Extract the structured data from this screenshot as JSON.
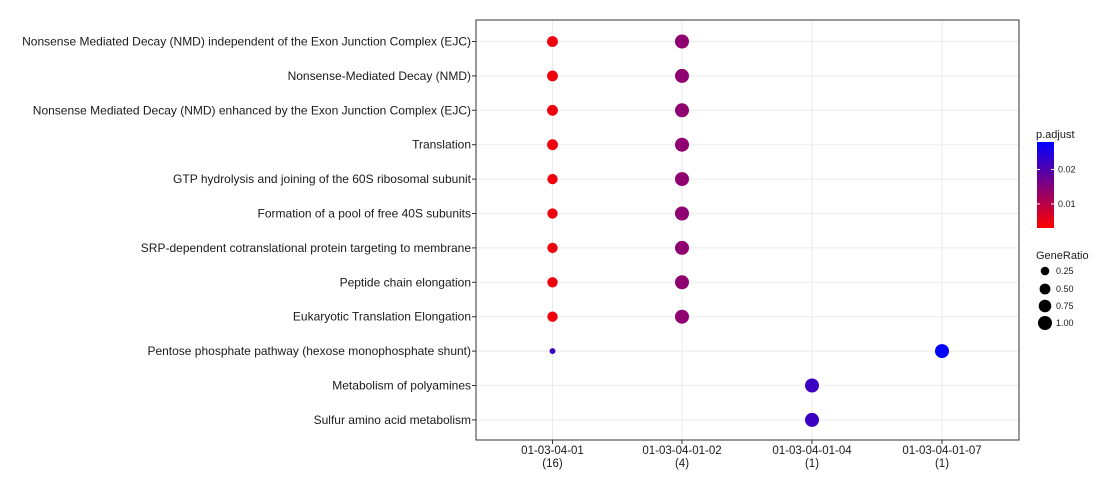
{
  "chart_data": {
    "type": "scatter",
    "title": "",
    "xlabel": "",
    "ylabel": "",
    "grid": true,
    "legend_position": "right",
    "x_categories": [
      {
        "line1": "01-03-04-01",
        "line2": "(16)"
      },
      {
        "line1": "01-03-04-01-02",
        "line2": "(4)"
      },
      {
        "line1": "01-03-04-01-04",
        "line2": "(1)"
      },
      {
        "line1": "01-03-04-01-07",
        "line2": "(1)"
      }
    ],
    "y_categories": [
      "Nonsense Mediated Decay (NMD) independent of the Exon Junction Complex (EJC)",
      "Nonsense-Mediated Decay (NMD)",
      "Nonsense Mediated Decay (NMD) enhanced by the Exon Junction Complex (EJC)",
      "Translation",
      "GTP hydrolysis and joining of the 60S ribosomal subunit",
      "Formation of a pool of free 40S subunits",
      "SRP-dependent cotranslational protein targeting to membrane",
      "Peptide chain elongation",
      "Eukaryotic Translation Elongation",
      "Pentose phosphate pathway (hexose monophosphate shunt)",
      "Metabolism of polyamines",
      "Sulfur amino acid metabolism"
    ],
    "points": [
      {
        "x": 0,
        "y": 0,
        "gene_ratio": 0.5,
        "p_adjust": 0.0045
      },
      {
        "x": 1,
        "y": 0,
        "gene_ratio": 1.0,
        "p_adjust": 0.014
      },
      {
        "x": 0,
        "y": 1,
        "gene_ratio": 0.5,
        "p_adjust": 0.0045
      },
      {
        "x": 1,
        "y": 1,
        "gene_ratio": 1.0,
        "p_adjust": 0.014
      },
      {
        "x": 0,
        "y": 2,
        "gene_ratio": 0.5,
        "p_adjust": 0.0045
      },
      {
        "x": 1,
        "y": 2,
        "gene_ratio": 1.0,
        "p_adjust": 0.014
      },
      {
        "x": 0,
        "y": 3,
        "gene_ratio": 0.5,
        "p_adjust": 0.0045
      },
      {
        "x": 1,
        "y": 3,
        "gene_ratio": 1.0,
        "p_adjust": 0.014
      },
      {
        "x": 0,
        "y": 4,
        "gene_ratio": 0.4375,
        "p_adjust": 0.0045
      },
      {
        "x": 1,
        "y": 4,
        "gene_ratio": 1.0,
        "p_adjust": 0.014
      },
      {
        "x": 0,
        "y": 5,
        "gene_ratio": 0.4375,
        "p_adjust": 0.0045
      },
      {
        "x": 1,
        "y": 5,
        "gene_ratio": 1.0,
        "p_adjust": 0.014
      },
      {
        "x": 0,
        "y": 6,
        "gene_ratio": 0.4375,
        "p_adjust": 0.0045
      },
      {
        "x": 1,
        "y": 6,
        "gene_ratio": 1.0,
        "p_adjust": 0.014
      },
      {
        "x": 0,
        "y": 7,
        "gene_ratio": 0.4375,
        "p_adjust": 0.0045
      },
      {
        "x": 1,
        "y": 7,
        "gene_ratio": 1.0,
        "p_adjust": 0.014
      },
      {
        "x": 0,
        "y": 8,
        "gene_ratio": 0.4375,
        "p_adjust": 0.0045
      },
      {
        "x": 1,
        "y": 8,
        "gene_ratio": 1.0,
        "p_adjust": 0.014
      },
      {
        "x": 0,
        "y": 9,
        "gene_ratio": 0.0625,
        "p_adjust": 0.022
      },
      {
        "x": 3,
        "y": 9,
        "gene_ratio": 1.0,
        "p_adjust": 0.028
      },
      {
        "x": 2,
        "y": 10,
        "gene_ratio": 1.0,
        "p_adjust": 0.022
      },
      {
        "x": 2,
        "y": 11,
        "gene_ratio": 1.0,
        "p_adjust": 0.022
      }
    ],
    "color_legend": {
      "title": "p.adjust",
      "range": [
        0.003,
        0.028
      ],
      "low_color": "#ff0000",
      "high_color": "#0000ff",
      "ticks": [
        {
          "value": 0.01,
          "label": "0.01"
        },
        {
          "value": 0.02,
          "label": "0.02"
        }
      ]
    },
    "size_legend": {
      "title": "GeneRatio",
      "entries": [
        {
          "value": 0.25,
          "label": "0.25"
        },
        {
          "value": 0.5,
          "label": "0.50"
        },
        {
          "value": 0.75,
          "label": "0.75"
        },
        {
          "value": 1.0,
          "label": "1.00"
        }
      ]
    }
  }
}
